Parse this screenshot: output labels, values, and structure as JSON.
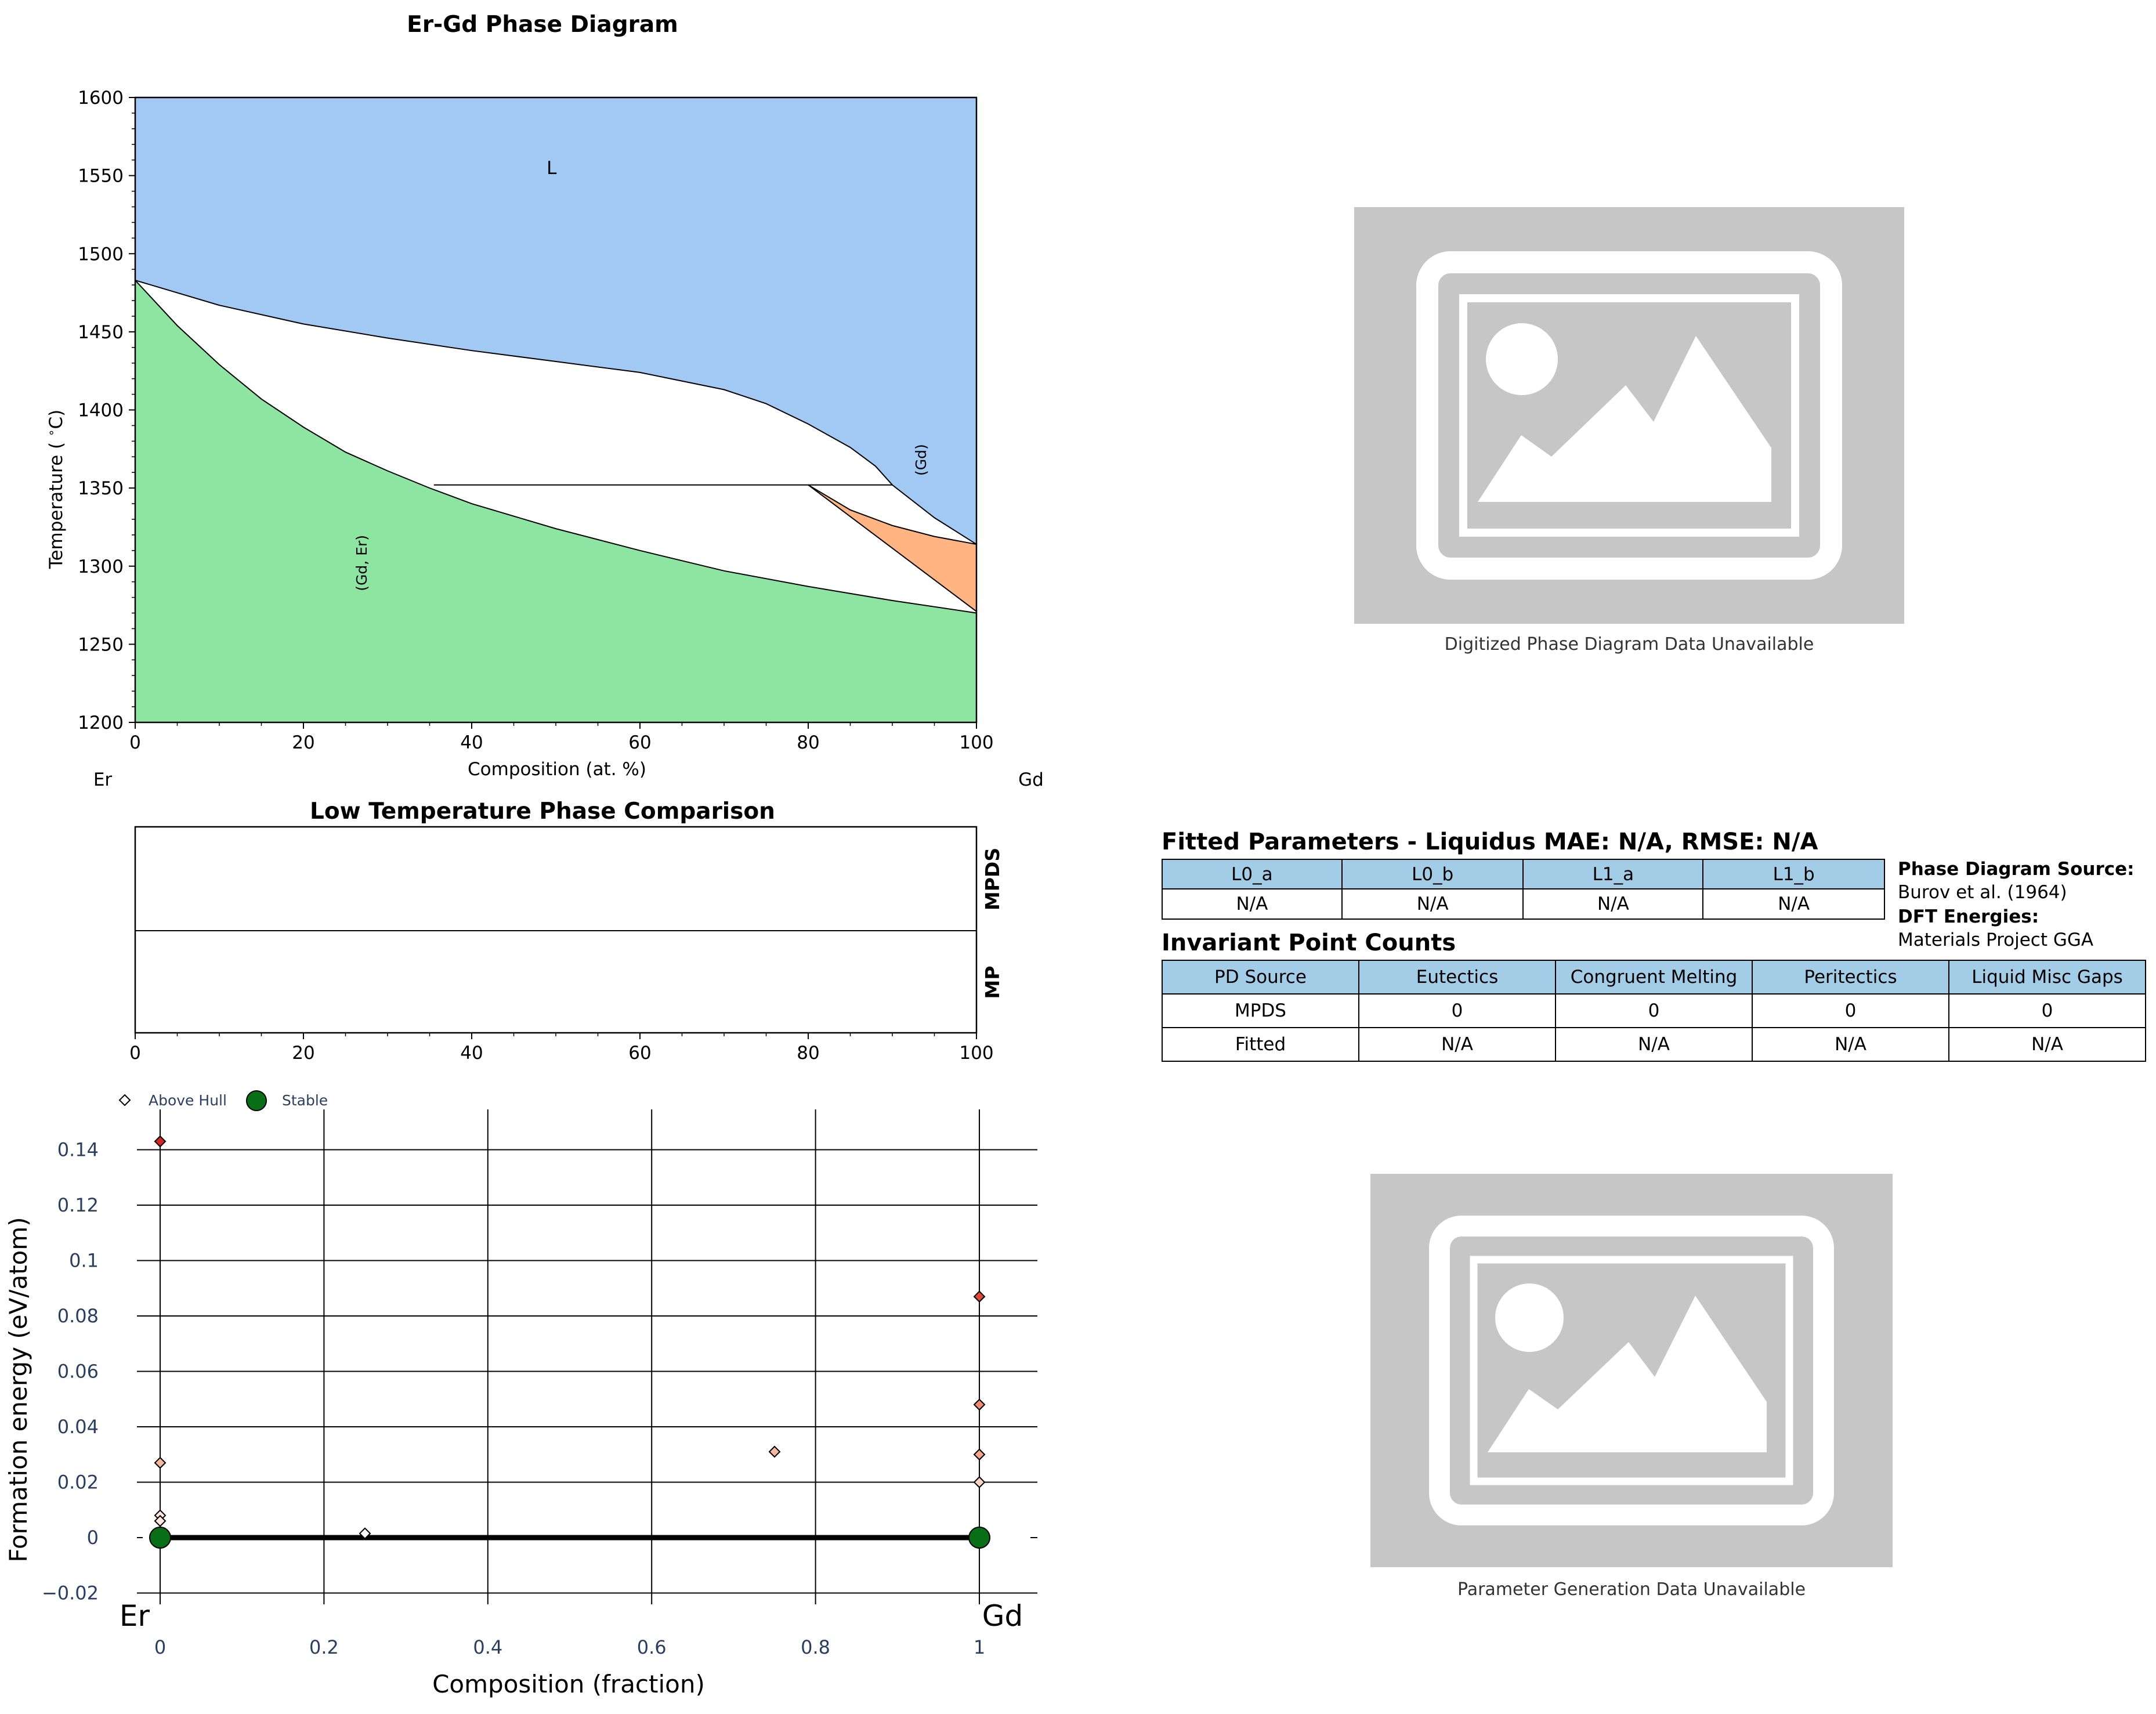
{
  "chart_data": [
    {
      "type": "area",
      "title": "Er-Gd Phase Diagram",
      "xlabel": "Composition (at. %)",
      "ylabel": "Temperature (°C)",
      "xlim": [
        0,
        100
      ],
      "ylim": [
        1200,
        1600
      ],
      "x_ticks": [
        0,
        20,
        40,
        60,
        80,
        100
      ],
      "y_ticks": [
        1200,
        1250,
        1300,
        1350,
        1400,
        1450,
        1500,
        1550,
        1600
      ],
      "left_element": "Er",
      "right_element": "Gd",
      "region_labels": [
        {
          "text": "L",
          "x": 49.5,
          "y": 1551
        },
        {
          "text": "(Gd)",
          "x": 94,
          "y": 1368,
          "rotated": true
        },
        {
          "text": "(Gd, Er)",
          "x": 27.5,
          "y": 1302,
          "rotated": true
        }
      ],
      "series": [
        {
          "name": "liquidus",
          "x": [
            0,
            10,
            20,
            30,
            40,
            50,
            60,
            70,
            75,
            80,
            85,
            88,
            90,
            95,
            100
          ],
          "y": [
            1483,
            1467,
            1455,
            1446,
            1438,
            1431,
            1424,
            1413,
            1404,
            1391,
            1376,
            1364,
            1352,
            1331,
            1314
          ]
        },
        {
          "name": "solidus",
          "x": [
            0,
            5,
            10,
            15,
            20,
            25,
            30,
            35,
            40,
            50,
            60,
            70,
            80,
            90,
            100
          ],
          "y": [
            1483,
            1454,
            1429,
            1407,
            1389,
            1373,
            1361,
            1350,
            1340,
            1324,
            1310,
            1297,
            1287,
            1278,
            1270
          ]
        },
        {
          "name": "peritectic_line",
          "x": [
            35.5,
            90
          ],
          "y": [
            1352,
            1352
          ]
        },
        {
          "name": "gd_solvus_upper",
          "x": [
            80,
            85,
            90,
            95,
            100
          ],
          "y": [
            1352,
            1336,
            1326,
            1319,
            1314
          ]
        },
        {
          "name": "gd_solvus_lower",
          "x": [
            80,
            100
          ],
          "y": [
            1352,
            1271
          ]
        }
      ]
    },
    {
      "type": "bar",
      "title": "Low Temperature Phase Comparison",
      "xlim": [
        0,
        100
      ],
      "x_ticks": [
        0,
        20,
        40,
        60,
        80,
        100
      ],
      "rows": [
        "MPDS",
        "MP"
      ]
    },
    {
      "type": "scatter",
      "xlabel": "Composition (fraction)",
      "ylabel": "Formation energy (eV/atom)",
      "xlim": [
        -0.05,
        1.07
      ],
      "ylim": [
        -0.025,
        0.15
      ],
      "x_ticks": [
        "0",
        "0.2",
        "0.4",
        "0.6",
        "0.8",
        "1"
      ],
      "y_ticks": [
        "−0.02",
        "0",
        "0.02",
        "0.04",
        "0.06",
        "0.08",
        "0.1",
        "0.12",
        "0.14"
      ],
      "end_labels": [
        "Er",
        "Gd"
      ],
      "legend": [
        "Above Hull",
        "Stable"
      ],
      "legend_position": "top-left",
      "grid": true,
      "hull": {
        "x": [
          0,
          1
        ],
        "y": [
          0,
          0
        ]
      },
      "series": [
        {
          "name": "Above Hull",
          "points": [
            {
              "x": 0,
              "y": 0.143,
              "color": "#d62728"
            },
            {
              "x": 0,
              "y": 0.027,
              "color": "#f4b7a0"
            },
            {
              "x": 0,
              "y": 0.008,
              "color": "#fde8e0"
            },
            {
              "x": 0,
              "y": 0.006,
              "color": "#fde8e0"
            },
            {
              "x": 0.25,
              "y": 0.0015,
              "color": "#ffffff"
            },
            {
              "x": 0.75,
              "y": 0.031,
              "color": "#f4b7a0"
            },
            {
              "x": 1,
              "y": 0.087,
              "color": "#e0483a"
            },
            {
              "x": 1,
              "y": 0.048,
              "color": "#f08a78"
            },
            {
              "x": 1,
              "y": 0.03,
              "color": "#f4a48c"
            },
            {
              "x": 1,
              "y": 0.02,
              "color": "#fbd3c4"
            }
          ]
        },
        {
          "name": "Stable",
          "points": [
            {
              "x": 0,
              "y": 0
            },
            {
              "x": 1,
              "y": 0
            }
          ],
          "color": "#0a6e17"
        }
      ]
    }
  ],
  "placeholders": {
    "digitized_caption": "Digitized Phase Diagram Data Unavailable",
    "parameter_caption": "Parameter Generation Data Unavailable"
  },
  "fitted": {
    "title": "Fitted Parameters - Liquidus MAE: N/A, RMSE: N/A",
    "headers": [
      "L0_a",
      "L0_b",
      "L1_a",
      "L1_b"
    ],
    "values": [
      "N/A",
      "N/A",
      "N/A",
      "N/A"
    ]
  },
  "source": {
    "pd_label": "Phase Diagram Source:",
    "pd_value": "Burov et al. (1964)",
    "dft_label": "DFT Energies:",
    "dft_value": "Materials Project GGA"
  },
  "invariant": {
    "title": "Invariant Point Counts",
    "headers": [
      "PD Source",
      "Eutectics",
      "Congruent Melting",
      "Peritectics",
      "Liquid Misc Gaps"
    ],
    "rows": [
      [
        "MPDS",
        "0",
        "0",
        "0",
        "0"
      ],
      [
        "Fitted",
        "N/A",
        "N/A",
        "N/A",
        "N/A"
      ]
    ]
  },
  "colors": {
    "liquid": "#a1c9f4",
    "gd_er_solid": "#8de5a1",
    "gd_solid": "#ffb482",
    "table_header": "#a3cce6",
    "placeholder_bg": "#c6c6c6",
    "stable": "#0a6e17",
    "axis_text_scatter": "#2a3f5f"
  }
}
